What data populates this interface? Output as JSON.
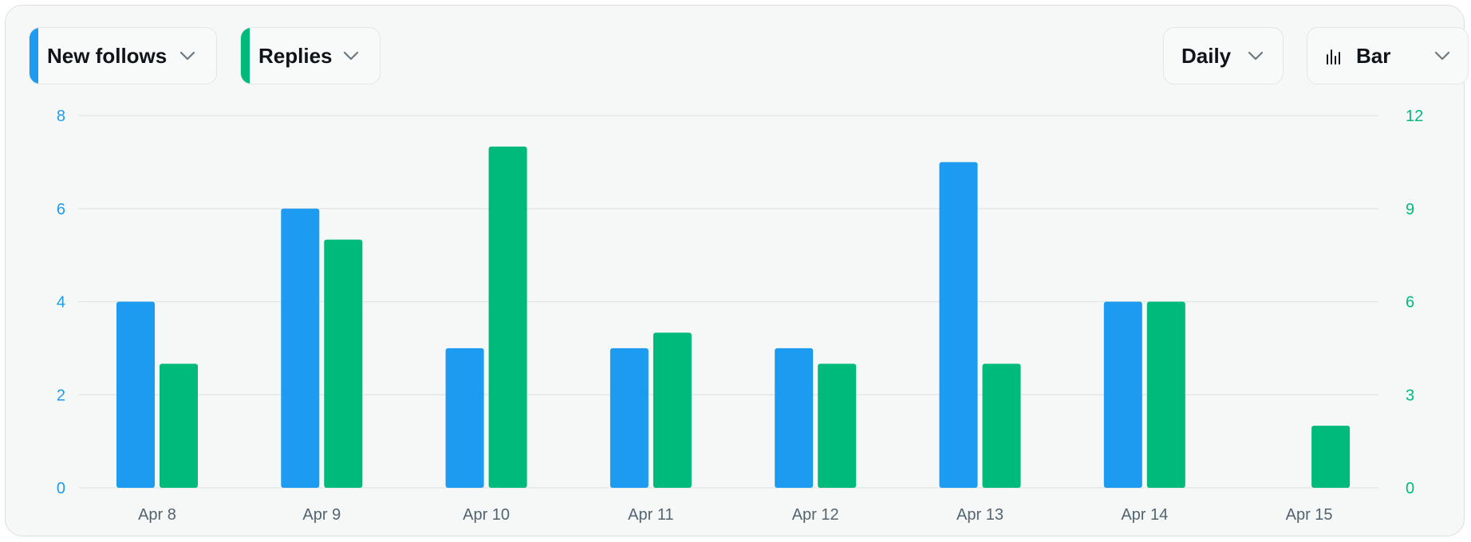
{
  "controls": {
    "metric_a": {
      "label": "New follows",
      "color": "#1d9bf0",
      "icon": "chevron-down-icon"
    },
    "metric_b": {
      "label": "Replies",
      "color": "#00ba7c",
      "icon": "chevron-down-icon"
    },
    "period": {
      "label": "Daily",
      "icon": "chevron-down-icon"
    },
    "chart_type": {
      "label": "Bar",
      "icon": "bar-chart-icon"
    }
  },
  "chart_data": {
    "type": "bar",
    "categories": [
      "Apr 8",
      "Apr 9",
      "Apr 10",
      "Apr 11",
      "Apr 12",
      "Apr 13",
      "Apr 14",
      "Apr 15"
    ],
    "series": [
      {
        "name": "New follows",
        "axis": "left",
        "color": "#1d9bf0",
        "values": [
          4,
          6,
          3,
          3,
          3,
          7,
          4,
          0
        ]
      },
      {
        "name": "Replies",
        "axis": "right",
        "color": "#00ba7c",
        "values": [
          4,
          8,
          11,
          5,
          4,
          4,
          6,
          2
        ]
      }
    ],
    "y_left": {
      "min": 0,
      "max": 8,
      "ticks": [
        "0",
        "2",
        "4",
        "6",
        "8"
      ]
    },
    "y_right": {
      "min": 0,
      "max": 12,
      "ticks": [
        "0",
        "3",
        "6",
        "9",
        "12"
      ]
    },
    "grid": true,
    "legend": "none"
  }
}
